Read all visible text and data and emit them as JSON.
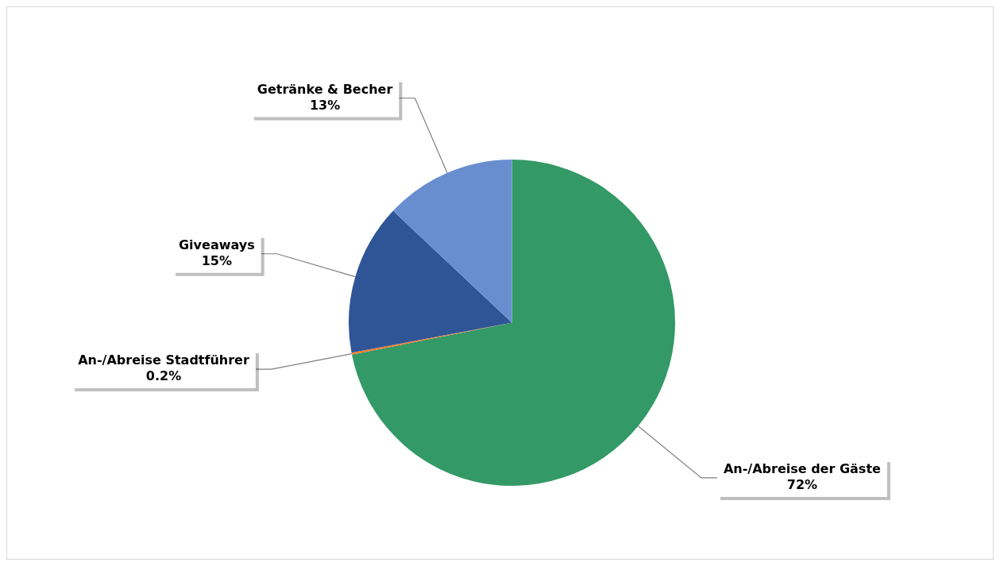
{
  "chart_data": {
    "type": "pie",
    "categories": [
      "An-/Abreise der Gäste",
      "An-/Abreise Stadtführer",
      "Giveaways",
      "Getränke & Becher"
    ],
    "values": [
      72,
      0.2,
      15,
      13
    ],
    "colors": [
      "#339966",
      "#ed7d31",
      "#2f5597",
      "#698ed0"
    ],
    "value_labels": [
      "72%",
      "0.2%",
      "15%",
      "13%"
    ],
    "legend": false
  }
}
